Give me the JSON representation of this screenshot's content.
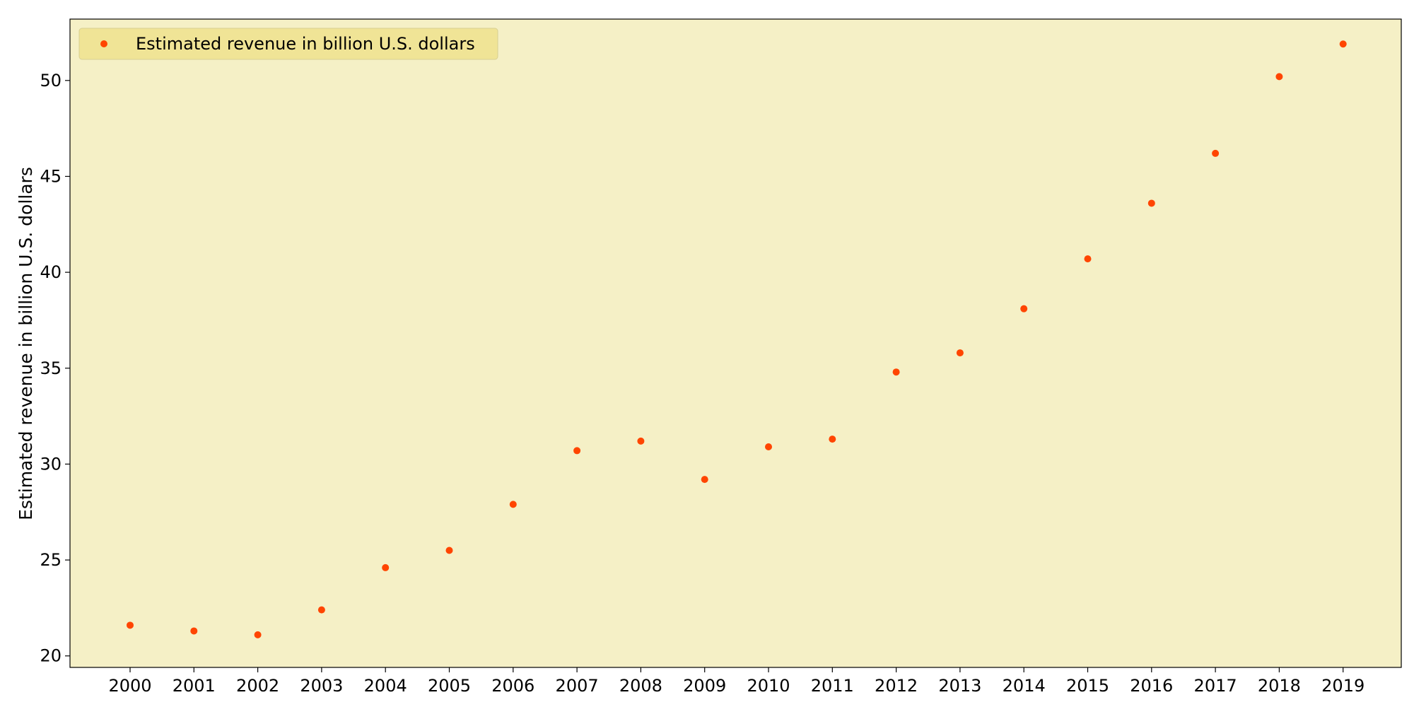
{
  "chart_data": {
    "type": "scatter",
    "x": [
      "2000",
      "2001",
      "2002",
      "2003",
      "2004",
      "2005",
      "2006",
      "2007",
      "2008",
      "2009",
      "2010",
      "2011",
      "2012",
      "2013",
      "2014",
      "2015",
      "2016",
      "2017",
      "2018",
      "2019"
    ],
    "series": [
      {
        "name": "Estimated revenue in billion U.S. dollars",
        "values": [
          21.6,
          21.3,
          21.1,
          22.4,
          24.6,
          25.5,
          27.9,
          30.7,
          31.2,
          29.2,
          30.9,
          31.3,
          34.8,
          35.8,
          38.1,
          40.7,
          43.6,
          46.2,
          50.2,
          51.9
        ],
        "color": "#ff4500"
      }
    ],
    "title": "",
    "xlabel": "",
    "ylabel": "Estimated revenue in billion U.S. dollars",
    "ylim": [
      19.4,
      53.2
    ],
    "yticks": [
      20,
      25,
      30,
      35,
      40,
      45,
      50
    ],
    "grid": false,
    "legend_position": "top-left",
    "plot_background": "#f5f0c6",
    "legend_background": "#f0e496"
  }
}
